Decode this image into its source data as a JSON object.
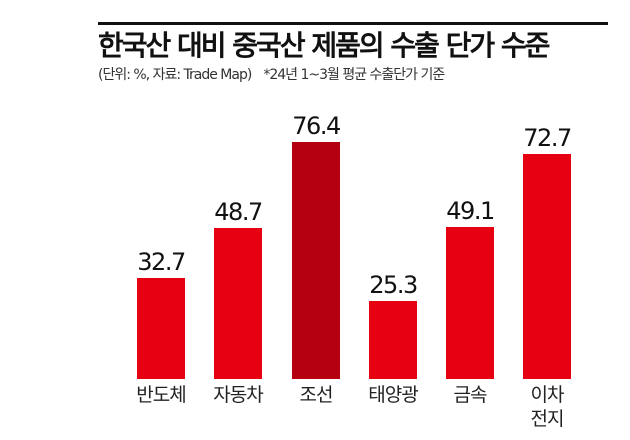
{
  "header": {
    "title": "한국산 대비 중국산 제품의 수출 단가 수준",
    "unit_source": "(단위: %, 자료: Trade Map)",
    "note": "*24년 1~3월 평균 수출단가 기준"
  },
  "colors": {
    "bar": "#e60012",
    "bar_highlight": "#b5000f",
    "rule": "#111111"
  },
  "chart_data": {
    "type": "bar",
    "title": "한국산 대비 중국산 제품의 수출 단가 수준",
    "subtitle": "(단위: %, 자료: Trade Map) *24년 1~3월 평균 수출단가 기준",
    "categories": [
      "반도체",
      "자동차",
      "조선",
      "태양광",
      "금속",
      "이차 전지"
    ],
    "values": [
      32.7,
      48.7,
      76.4,
      25.3,
      49.1,
      72.7
    ],
    "value_labels": [
      "32.7",
      "48.7",
      "76.4",
      "25.3",
      "49.1",
      "72.7"
    ],
    "highlight_index": 2,
    "xlabel": "",
    "ylabel": "%",
    "ylim": [
      0,
      100
    ],
    "grid": false,
    "legend": null
  },
  "bars": [
    {
      "label_line1": "반도체",
      "label_line2": "",
      "value": "32.7"
    },
    {
      "label_line1": "자동차",
      "label_line2": "",
      "value": "48.7"
    },
    {
      "label_line1": "조선",
      "label_line2": "",
      "value": "76.4"
    },
    {
      "label_line1": "태양광",
      "label_line2": "",
      "value": "25.3"
    },
    {
      "label_line1": "금속",
      "label_line2": "",
      "value": "49.1"
    },
    {
      "label_line1": "이차",
      "label_line2": "전지",
      "value": "72.7"
    }
  ]
}
